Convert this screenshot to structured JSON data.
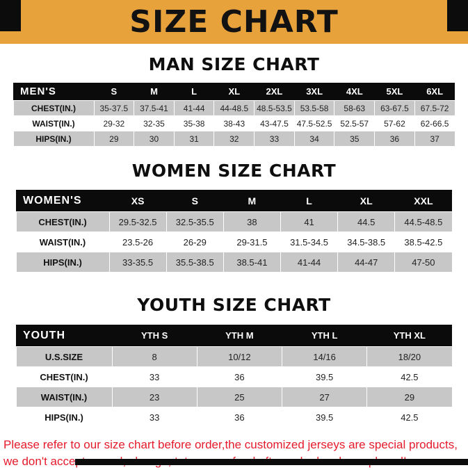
{
  "banner": {
    "title": "SIZE CHART"
  },
  "sections": [
    {
      "title": "MAN SIZE CHART",
      "table": {
        "header": [
          "MEN'S",
          "S",
          "M",
          "L",
          "XL",
          "2XL",
          "3XL",
          "4XL",
          "5XL",
          "6XL"
        ],
        "rows": [
          {
            "label": "CHEST(IN.)",
            "values": [
              "35-37.5",
              "37.5-41",
              "41-44",
              "44-48.5",
              "48.5-53.5",
              "53.5-58",
              "58-63",
              "63-67.5",
              "67.5-72"
            ]
          },
          {
            "label": "WAIST(IN.)",
            "values": [
              "29-32",
              "32-35",
              "35-38",
              "38-43",
              "43-47.5",
              "47.5-52.5",
              "52.5-57",
              "57-62",
              "62-66.5"
            ]
          },
          {
            "label": "HIPS(IN.)",
            "values": [
              "29",
              "30",
              "31",
              "32",
              "33",
              "34",
              "35",
              "36",
              "37"
            ]
          }
        ]
      }
    },
    {
      "title": "WOMEN SIZE CHART",
      "table": {
        "header": [
          "WOMEN'S",
          "XS",
          "S",
          "M",
          "L",
          "XL",
          "XXL"
        ],
        "rows": [
          {
            "label": "CHEST(IN.)",
            "values": [
              "29.5-32.5",
              "32.5-35.5",
              "38",
              "41",
              "44.5",
              "44.5-48.5"
            ]
          },
          {
            "label": "WAIST(IN.)",
            "values": [
              "23.5-26",
              "26-29",
              "29-31.5",
              "31.5-34.5",
              "34.5-38.5",
              "38.5-42.5"
            ]
          },
          {
            "label": "HIPS(IN.)",
            "values": [
              "33-35.5",
              "35.5-38.5",
              "38.5-41",
              "41-44",
              "44-47",
              "47-50"
            ]
          }
        ]
      }
    },
    {
      "title": "YOUTH SIZE CHART",
      "table": {
        "header": [
          "YOUTH",
          "YTH S",
          "YTH M",
          "YTH L",
          "YTH XL"
        ],
        "rows": [
          {
            "label": "U.S.SIZE",
            "values": [
              "8",
              "10/12",
              "14/16",
              "18/20"
            ]
          },
          {
            "label": "CHEST(IN.)",
            "values": [
              "33",
              "36",
              "39.5",
              "42.5"
            ]
          },
          {
            "label": "WAIST(IN.)",
            "values": [
              "23",
              "25",
              "27",
              "29"
            ]
          },
          {
            "label": "HIPS(IN.)",
            "values": [
              "33",
              "36",
              "39.5",
              "42.5"
            ]
          }
        ]
      }
    }
  ],
  "footer": {
    "line1": "Please refer to our size chart before order,the customized jerseys are special products,",
    "line2": "we don't accept cancel, change, teturn or refund after order has been placed!"
  },
  "colors": {
    "banner_bg": "#E8A23C",
    "header_bg": "#0B0B0B",
    "row_alt_bg": "#C7C7C7",
    "note_red": "#E51A2B"
  }
}
